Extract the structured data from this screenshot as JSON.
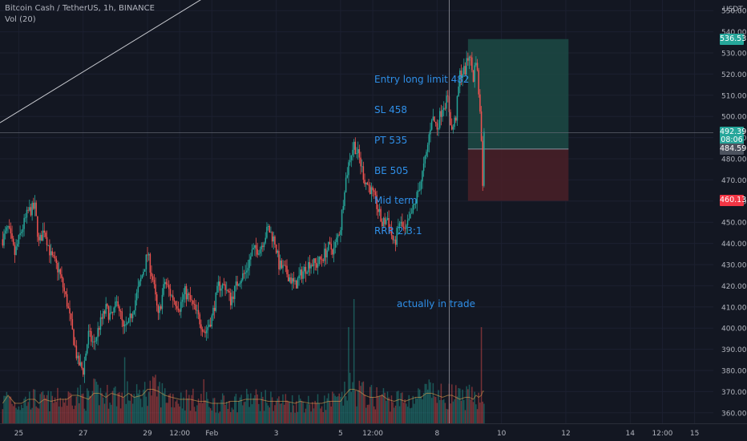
{
  "header": {
    "symbol_line": "Bitcoin Cash / TetherUS, 1h, BINANCE",
    "volume_line": "Vol (20)"
  },
  "annotations": {
    "trade_plan": [
      "Entry long limit 482",
      "SL 458",
      "PT 535",
      "BE 505",
      "Mid term",
      "RRR 2,3:1"
    ],
    "status": "actually in trade"
  },
  "colors": {
    "background": "#131722",
    "up": "#26a69a",
    "down": "#ef5350",
    "annotation": "#2f8fe8",
    "grid": "#1c2030",
    "profit_zone": "#1c4a44",
    "loss_zone": "#4a2027"
  },
  "price_tags": [
    {
      "label": "536.53",
      "value": 536.53,
      "color": "#26a69a"
    },
    {
      "label": "492.39",
      "value": 492.39,
      "color": "#26a69a"
    },
    {
      "label": "08:06",
      "value": 488.8,
      "color": "#26a69a"
    },
    {
      "label": "484.59",
      "value": 484.59,
      "color": "#4c525e"
    },
    {
      "label": "460.13",
      "value": 460.13,
      "color": "#f23645"
    }
  ],
  "chart_data": {
    "type": "candlestick",
    "title": "Bitcoin Cash / TetherUS, 1h, BINANCE",
    "y_axis": {
      "unit": "USDT",
      "ticks": [
        360,
        370,
        380,
        390,
        400,
        410,
        420,
        430,
        440,
        450,
        460,
        470,
        480,
        490,
        500,
        510,
        520,
        530,
        540,
        550
      ],
      "ylim": [
        355,
        555
      ]
    },
    "x_axis": {
      "ticks": [
        {
          "label": "25",
          "x": 12
        },
        {
          "label": "27",
          "x": 60
        },
        {
          "label": "29",
          "x": 108
        },
        {
          "label": "12:00",
          "x": 132
        },
        {
          "label": "Feb",
          "x": 156
        },
        {
          "label": "3",
          "x": 204
        },
        {
          "label": "5",
          "x": 252
        },
        {
          "label": "12:00",
          "x": 276
        },
        {
          "label": "8",
          "x": 324
        },
        {
          "label": "10",
          "x": 372
        },
        {
          "label": "12",
          "x": 420
        },
        {
          "label": "14",
          "x": 468
        },
        {
          "label": "12:00",
          "x": 492
        },
        {
          "label": "15",
          "x": 516
        }
      ],
      "xlim": [
        -2,
        530
      ]
    },
    "price_path": [
      [
        0,
        442
      ],
      [
        4,
        447
      ],
      [
        9,
        435
      ],
      [
        14,
        446
      ],
      [
        19,
        455
      ],
      [
        24,
        457
      ],
      [
        27,
        440
      ],
      [
        31,
        447
      ],
      [
        36,
        434
      ],
      [
        42,
        427
      ],
      [
        48,
        412
      ],
      [
        52,
        398
      ],
      [
        56,
        384
      ],
      [
        60,
        380
      ],
      [
        64,
        397
      ],
      [
        68,
        392
      ],
      [
        72,
        401
      ],
      [
        77,
        409
      ],
      [
        81,
        405
      ],
      [
        86,
        413
      ],
      [
        90,
        399
      ],
      [
        94,
        402
      ],
      [
        98,
        411
      ],
      [
        104,
        425
      ],
      [
        108,
        435
      ],
      [
        112,
        423
      ],
      [
        116,
        405
      ],
      [
        121,
        422
      ],
      [
        126,
        415
      ],
      [
        132,
        410
      ],
      [
        136,
        417
      ],
      [
        140,
        413
      ],
      [
        146,
        405
      ],
      [
        151,
        398
      ],
      [
        156,
        405
      ],
      [
        161,
        420
      ],
      [
        166,
        420
      ],
      [
        170,
        413
      ],
      [
        176,
        423
      ],
      [
        181,
        426
      ],
      [
        186,
        436
      ],
      [
        192,
        438
      ],
      [
        198,
        447
      ],
      [
        203,
        441
      ],
      [
        206,
        430
      ],
      [
        212,
        426
      ],
      [
        218,
        420
      ],
      [
        222,
        425
      ],
      [
        229,
        431
      ],
      [
        234,
        430
      ],
      [
        238,
        433
      ],
      [
        243,
        438
      ],
      [
        247,
        437
      ],
      [
        252,
        448
      ],
      [
        255,
        467
      ],
      [
        259,
        481
      ],
      [
        262,
        487
      ],
      [
        266,
        480
      ],
      [
        270,
        470
      ],
      [
        274,
        466
      ],
      [
        278,
        460
      ],
      [
        283,
        449
      ],
      [
        287,
        452
      ],
      [
        292,
        439
      ],
      [
        296,
        450
      ],
      [
        300,
        445
      ],
      [
        304,
        452
      ],
      [
        308,
        460
      ],
      [
        312,
        470
      ],
      [
        316,
        482
      ],
      [
        320,
        500
      ],
      [
        324,
        495
      ],
      [
        328,
        505
      ],
      [
        332,
        508
      ],
      [
        335,
        493
      ],
      [
        338,
        500
      ],
      [
        341,
        520
      ],
      [
        345,
        522
      ],
      [
        348,
        530
      ],
      [
        351,
        518
      ],
      [
        353,
        528
      ],
      [
        355,
        512
      ],
      [
        357,
        490
      ],
      [
        358,
        470
      ],
      [
        359,
        492
      ]
    ],
    "volume_path": [
      [
        0,
        0.1
      ],
      [
        4,
        0.14
      ],
      [
        9,
        0.1
      ],
      [
        14,
        0.1
      ],
      [
        19,
        0.12
      ],
      [
        24,
        0.12
      ],
      [
        27,
        0.1
      ],
      [
        31,
        0.12
      ],
      [
        36,
        0.11
      ],
      [
        42,
        0.12
      ],
      [
        48,
        0.12
      ],
      [
        52,
        0.14
      ],
      [
        56,
        0.14
      ],
      [
        60,
        0.13
      ],
      [
        64,
        0.12
      ],
      [
        68,
        0.15
      ],
      [
        72,
        0.15
      ],
      [
        77,
        0.13
      ],
      [
        81,
        0.15
      ],
      [
        86,
        0.14
      ],
      [
        90,
        0.13
      ],
      [
        94,
        0.15
      ],
      [
        98,
        0.13
      ],
      [
        104,
        0.14
      ],
      [
        108,
        0.17
      ],
      [
        112,
        0.17
      ],
      [
        116,
        0.16
      ],
      [
        121,
        0.14
      ],
      [
        126,
        0.13
      ],
      [
        132,
        0.12
      ],
      [
        136,
        0.12
      ],
      [
        140,
        0.12
      ],
      [
        146,
        0.11
      ],
      [
        151,
        0.11
      ],
      [
        156,
        0.1
      ],
      [
        161,
        0.1
      ],
      [
        166,
        0.1
      ],
      [
        170,
        0.11
      ],
      [
        176,
        0.11
      ],
      [
        181,
        0.12
      ],
      [
        186,
        0.12
      ],
      [
        192,
        0.12
      ],
      [
        198,
        0.11
      ],
      [
        203,
        0.11
      ],
      [
        206,
        0.11
      ],
      [
        212,
        0.11
      ],
      [
        218,
        0.1
      ],
      [
        222,
        0.11
      ],
      [
        229,
        0.1
      ],
      [
        234,
        0.1
      ],
      [
        238,
        0.1
      ],
      [
        243,
        0.11
      ],
      [
        247,
        0.11
      ],
      [
        252,
        0.11
      ],
      [
        255,
        0.14
      ],
      [
        259,
        0.17
      ],
      [
        262,
        0.17
      ],
      [
        266,
        0.16
      ],
      [
        270,
        0.14
      ],
      [
        274,
        0.13
      ],
      [
        278,
        0.13
      ],
      [
        283,
        0.14
      ],
      [
        287,
        0.12
      ],
      [
        292,
        0.11
      ],
      [
        296,
        0.12
      ],
      [
        300,
        0.11
      ],
      [
        304,
        0.12
      ],
      [
        308,
        0.13
      ],
      [
        312,
        0.13
      ],
      [
        316,
        0.15
      ],
      [
        320,
        0.15
      ],
      [
        324,
        0.14
      ],
      [
        328,
        0.13
      ],
      [
        332,
        0.14
      ],
      [
        335,
        0.14
      ],
      [
        338,
        0.13
      ],
      [
        341,
        0.12
      ],
      [
        345,
        0.13
      ],
      [
        348,
        0.13
      ],
      [
        351,
        0.12
      ],
      [
        353,
        0.14
      ],
      [
        355,
        0.13
      ],
      [
        357,
        0.14
      ],
      [
        358,
        0.16
      ],
      [
        359,
        0.16
      ]
    ],
    "volume_spikes": [
      {
        "x": 91,
        "h": 0.33
      },
      {
        "x": 150,
        "h": 0.22
      },
      {
        "x": 258,
        "h": 0.48
      },
      {
        "x": 262,
        "h": 0.62
      },
      {
        "x": 357,
        "h": 0.48
      },
      {
        "x": 363,
        "h": 0.48
      }
    ],
    "long_position": {
      "entry": 484.59,
      "stop": 460.13,
      "target": 536.53,
      "x_start": 347,
      "x_end": 422
    },
    "trend_line": {
      "from": [
        -2,
        497
      ],
      "to": [
        150,
        556
      ]
    },
    "crosshair": {
      "x": 333,
      "price": 492.39
    }
  }
}
